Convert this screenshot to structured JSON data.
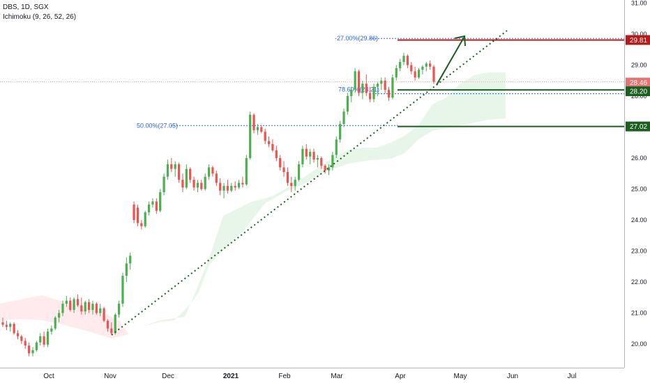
{
  "legend": {
    "symbol": "DBS, 1D, SGX",
    "indicator": "Ichimoku (9, 26, 52, 26)"
  },
  "colors": {
    "up": "#26a69a",
    "down": "#ef5350",
    "up_candle": "#4caf50",
    "trend": "#1b5e20",
    "resistance": "#b71c1c",
    "support": "#1b5e20",
    "current": "#f8a5a0",
    "fib": "#2962ff",
    "cloud_bull": "#e8f5e9",
    "cloud_bear": "#ffebee"
  },
  "chart_data": {
    "type": "candlestick",
    "title": "",
    "xlabel": "",
    "ylabel": "",
    "ylim": [
      19.4,
      31.0
    ],
    "y_ticks": [
      "20.00",
      "21.00",
      "22.00",
      "23.00",
      "24.00",
      "25.00",
      "26.00",
      "27.00",
      "28.00",
      "29.00",
      "30.00",
      "31.00"
    ],
    "x_ticks": [
      "Oct",
      "Nov",
      "Dec",
      "2021",
      "Feb",
      "Mar",
      "Apr",
      "May",
      "Jun",
      "Jul"
    ],
    "price_labels": [
      {
        "value": "29.81",
        "kind": "resistance"
      },
      {
        "value": "28.46",
        "kind": "current"
      },
      {
        "value": "28.20",
        "kind": "support"
      },
      {
        "value": "27.02",
        "kind": "support"
      }
    ],
    "fib_labels": [
      {
        "text": "-27.00%(29.86)",
        "value": 29.86
      },
      {
        "text": "78.60%(28.21)",
        "value": 28.21
      },
      {
        "text": "50.00%(27.05)",
        "value": 27.05
      }
    ],
    "candles": [
      [
        20.7,
        20.85,
        20.55,
        20.62
      ],
      [
        20.62,
        20.75,
        20.45,
        20.55
      ],
      [
        20.55,
        20.7,
        20.4,
        20.65
      ],
      [
        20.65,
        20.7,
        20.3,
        20.35
      ],
      [
        20.35,
        20.45,
        20.15,
        20.25
      ],
      [
        20.25,
        20.3,
        20.0,
        20.1
      ],
      [
        20.1,
        20.2,
        19.85,
        19.95
      ],
      [
        19.95,
        20.05,
        19.6,
        19.7
      ],
      [
        19.7,
        19.9,
        19.6,
        19.8
      ],
      [
        19.8,
        20.1,
        19.75,
        20.05
      ],
      [
        20.05,
        20.35,
        19.95,
        20.25
      ],
      [
        20.25,
        20.4,
        19.9,
        19.98
      ],
      [
        19.98,
        20.5,
        19.9,
        20.4
      ],
      [
        20.4,
        20.6,
        20.3,
        20.5
      ],
      [
        20.5,
        20.9,
        20.45,
        20.85
      ],
      [
        20.85,
        21.1,
        20.7,
        21.0
      ],
      [
        21.0,
        21.4,
        20.9,
        21.3
      ],
      [
        21.3,
        21.55,
        21.2,
        21.4
      ],
      [
        21.4,
        21.5,
        21.05,
        21.1
      ],
      [
        21.1,
        21.5,
        21.0,
        21.45
      ],
      [
        21.45,
        21.6,
        21.2,
        21.25
      ],
      [
        21.25,
        21.5,
        20.95,
        21.05
      ],
      [
        21.05,
        21.4,
        20.95,
        21.35
      ],
      [
        21.35,
        21.45,
        21.0,
        21.1
      ],
      [
        21.1,
        21.4,
        20.95,
        21.3
      ],
      [
        21.3,
        21.35,
        20.95,
        21.0
      ],
      [
        21.0,
        21.3,
        20.9,
        21.15
      ],
      [
        21.15,
        21.2,
        20.7,
        20.75
      ],
      [
        20.75,
        20.8,
        20.4,
        20.5
      ],
      [
        20.5,
        20.7,
        20.3,
        20.35
      ],
      [
        20.35,
        21.0,
        20.3,
        20.95
      ],
      [
        20.95,
        21.4,
        20.85,
        21.3
      ],
      [
        21.3,
        22.3,
        21.2,
        22.2
      ],
      [
        22.2,
        22.8,
        22.0,
        22.6
      ],
      [
        22.6,
        22.95,
        22.4,
        22.85
      ],
      [
        24.5,
        24.6,
        23.9,
        24.0
      ],
      [
        24.4,
        24.5,
        23.8,
        23.9
      ],
      [
        23.9,
        24.0,
        23.7,
        23.8
      ],
      [
        23.8,
        24.3,
        23.75,
        24.25
      ],
      [
        24.25,
        24.6,
        24.15,
        24.5
      ],
      [
        24.5,
        24.7,
        24.4,
        24.6
      ],
      [
        24.6,
        24.7,
        24.2,
        24.3
      ],
      [
        24.3,
        25.0,
        24.25,
        24.9
      ],
      [
        24.9,
        25.5,
        24.8,
        25.4
      ],
      [
        25.4,
        25.95,
        25.3,
        25.8
      ],
      [
        25.8,
        26.0,
        25.55,
        25.65
      ],
      [
        25.65,
        25.9,
        25.4,
        25.8
      ],
      [
        25.8,
        25.85,
        25.2,
        25.3
      ],
      [
        25.3,
        25.5,
        24.9,
        25.05
      ],
      [
        25.05,
        25.8,
        25.0,
        25.65
      ],
      [
        25.65,
        25.7,
        25.2,
        25.3
      ],
      [
        25.3,
        25.4,
        24.95,
        25.05
      ],
      [
        25.05,
        25.3,
        24.9,
        25.2
      ],
      [
        25.2,
        25.3,
        24.95,
        25.0
      ],
      [
        25.0,
        25.5,
        24.95,
        25.4
      ],
      [
        25.4,
        25.8,
        25.3,
        25.7
      ],
      [
        25.7,
        25.75,
        25.4,
        25.5
      ],
      [
        25.5,
        25.6,
        25.1,
        25.2
      ],
      [
        25.2,
        25.35,
        24.8,
        24.95
      ],
      [
        24.95,
        25.2,
        24.7,
        25.1
      ],
      [
        25.1,
        25.3,
        24.85,
        24.95
      ],
      [
        24.95,
        25.2,
        24.9,
        25.1
      ],
      [
        25.1,
        25.25,
        24.95,
        25.05
      ],
      [
        25.05,
        25.3,
        25.0,
        25.2
      ],
      [
        25.2,
        25.4,
        25.05,
        25.15
      ],
      [
        25.15,
        26.1,
        25.1,
        26.0
      ],
      [
        26.0,
        27.5,
        25.95,
        27.4
      ],
      [
        27.4,
        27.45,
        26.8,
        26.9
      ],
      [
        26.9,
        27.1,
        26.75,
        27.0
      ],
      [
        27.0,
        27.05,
        26.8,
        26.85
      ],
      [
        26.85,
        26.95,
        26.45,
        26.55
      ],
      [
        26.55,
        26.7,
        26.35,
        26.45
      ],
      [
        26.45,
        26.6,
        26.2,
        26.25
      ],
      [
        26.25,
        26.4,
        25.9,
        26.0
      ],
      [
        26.0,
        26.1,
        25.6,
        25.7
      ],
      [
        25.7,
        25.9,
        25.4,
        25.55
      ],
      [
        25.55,
        25.7,
        25.1,
        25.2
      ],
      [
        25.2,
        25.4,
        24.9,
        25.1
      ],
      [
        25.1,
        25.4,
        24.95,
        25.3
      ],
      [
        25.3,
        25.9,
        25.25,
        25.8
      ],
      [
        25.8,
        26.4,
        25.7,
        26.3
      ],
      [
        26.3,
        26.45,
        25.95,
        26.05
      ],
      [
        26.05,
        26.3,
        25.8,
        26.2
      ],
      [
        26.2,
        26.3,
        25.85,
        25.95
      ],
      [
        25.95,
        26.1,
        25.7,
        26.0
      ],
      [
        26.0,
        26.05,
        25.65,
        25.75
      ],
      [
        25.75,
        25.8,
        25.5,
        25.6
      ],
      [
        25.6,
        25.8,
        25.45,
        25.7
      ],
      [
        25.7,
        26.2,
        25.6,
        26.1
      ],
      [
        26.1,
        26.7,
        26.0,
        26.6
      ],
      [
        26.6,
        27.2,
        26.5,
        27.1
      ],
      [
        27.1,
        27.6,
        27.0,
        27.5
      ],
      [
        27.5,
        28.1,
        27.4,
        28.0
      ],
      [
        28.0,
        28.3,
        27.8,
        28.2
      ],
      [
        28.2,
        28.9,
        28.1,
        28.8
      ],
      [
        28.8,
        28.85,
        28.0,
        28.1
      ],
      [
        28.1,
        28.5,
        27.9,
        28.4
      ],
      [
        28.4,
        28.7,
        28.0,
        28.1
      ],
      [
        28.1,
        28.3,
        27.8,
        27.9
      ],
      [
        27.9,
        28.4,
        27.8,
        28.3
      ],
      [
        28.3,
        28.45,
        28.0,
        28.4
      ],
      [
        28.4,
        28.6,
        28.2,
        28.5
      ],
      [
        28.5,
        28.6,
        28.1,
        28.2
      ],
      [
        28.2,
        28.3,
        27.85,
        27.95
      ],
      [
        27.95,
        28.7,
        27.9,
        28.6
      ],
      [
        28.6,
        29.0,
        28.5,
        28.9
      ],
      [
        28.9,
        29.2,
        28.8,
        29.1
      ],
      [
        29.1,
        29.4,
        29.0,
        29.3
      ],
      [
        29.3,
        29.35,
        28.9,
        29.0
      ],
      [
        29.0,
        29.1,
        28.7,
        28.8
      ],
      [
        28.8,
        28.95,
        28.5,
        28.6
      ],
      [
        28.6,
        28.9,
        28.55,
        28.85
      ],
      [
        28.85,
        29.0,
        28.7,
        28.95
      ],
      [
        28.95,
        29.1,
        28.8,
        29.05
      ],
      [
        29.05,
        29.15,
        28.85,
        28.95
      ],
      [
        28.95,
        29.0,
        28.4,
        28.46
      ]
    ]
  }
}
